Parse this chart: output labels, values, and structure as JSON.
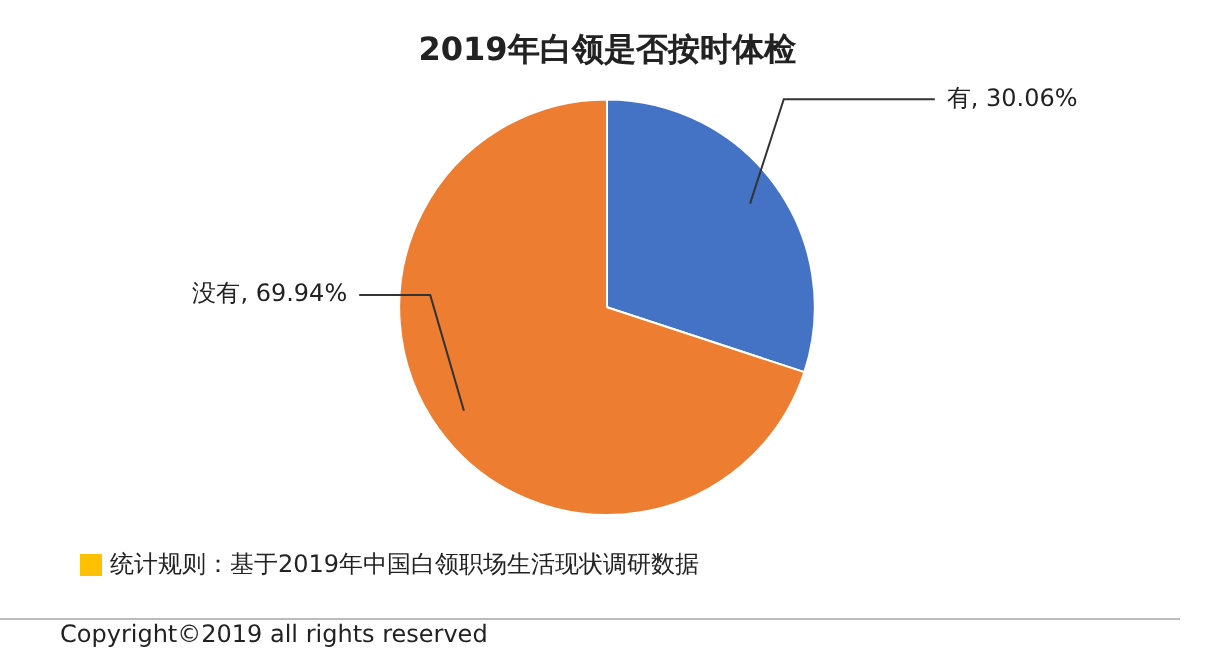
{
  "chart_data": {
    "type": "pie",
    "title": "2019年白领是否按时体检",
    "categories": [
      "有",
      "没有"
    ],
    "values": [
      30.06,
      69.94
    ],
    "colors": [
      "#4472c4",
      "#ed7d31"
    ],
    "value_labels": [
      "30.06%",
      "69.94%"
    ],
    "annotations": [
      "统计规则：基于2019年中国白领职场生活现状调研数据",
      "Copyright©2019 all rights reserved"
    ]
  }
}
